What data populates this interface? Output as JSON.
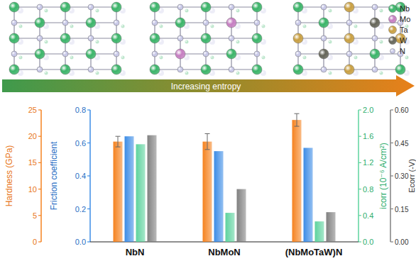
{
  "chart_data": {
    "type": "bar",
    "categories": [
      "NbN",
      "NbMoN",
      "(NbMoTaW)N"
    ],
    "series": [
      {
        "color": "#f5821f",
        "axis": "y",
        "values": [
          19.0,
          19.0,
          23.1
        ],
        "errors": [
          1.0,
          1.5,
          1.2
        ]
      },
      {
        "color": "#3c8ce6",
        "axis": "y2",
        "values": [
          0.64,
          0.55,
          0.57
        ]
      },
      {
        "color": "#5dd39e",
        "axis": "y3",
        "values": [
          1.48,
          0.44,
          0.31
        ]
      },
      {
        "color": "#808080",
        "axis": "y4",
        "values": [
          0.485,
          0.24,
          0.135
        ]
      }
    ],
    "ylabel": "Hardness (GPa)",
    "y2label": "Friction coefficient",
    "y3label": "icorr (10⁻⁶ A/cm²)",
    "y4label": "Ecorr (-V)",
    "ylim": [
      0,
      25
    ],
    "yticks": [
      0,
      5,
      10,
      15,
      20,
      25
    ],
    "y2lim": [
      0,
      0.8
    ],
    "y2ticks": [
      {
        "value": 0,
        "label": "0.0"
      },
      {
        "value": 0.2,
        "label": "0.2"
      },
      {
        "value": 0.4,
        "label": "0.4"
      },
      {
        "value": 0.6,
        "label": "0.6"
      },
      {
        "value": 0.8,
        "label": "0.8"
      }
    ],
    "y3lim": [
      0,
      2
    ],
    "y3ticks": [
      {
        "value": 0,
        "label": "0.0"
      },
      {
        "value": 0.4,
        "label": "0.4"
      },
      {
        "value": 0.8,
        "label": "0.8"
      },
      {
        "value": 1.2,
        "label": "1.2"
      },
      {
        "value": 1.6,
        "label": "1.6"
      },
      {
        "value": 2,
        "label": "2.0"
      }
    ],
    "y4lim": [
      0,
      0.6
    ],
    "y4ticks": [
      {
        "value": 0,
        "label": "0.00"
      },
      {
        "value": 0.15,
        "label": "0.15"
      },
      {
        "value": 0.3,
        "label": "0.30"
      },
      {
        "value": 0.45,
        "label": "0.45"
      },
      {
        "value": 0.6,
        "label": "0.60"
      }
    ],
    "grid": false
  },
  "arrow_label": "Increasing entropy",
  "atom_legend": [
    {
      "label": "Nb",
      "color": "#3cb56a"
    },
    {
      "label": "Mo",
      "color": "#c67fc2"
    },
    {
      "label": "Ta",
      "color": "#c9a043"
    },
    {
      "label": "W",
      "color": "#66665a"
    },
    {
      "label": "N",
      "color": "#c8c8e8"
    }
  ],
  "structures": [
    {
      "metals": [
        "Nb"
      ],
      "anion": "N"
    },
    {
      "metals": [
        "Nb",
        "Mo"
      ],
      "anion": "N"
    },
    {
      "metals": [
        "Nb",
        "Mo",
        "Ta",
        "W"
      ],
      "anion": "N"
    }
  ]
}
